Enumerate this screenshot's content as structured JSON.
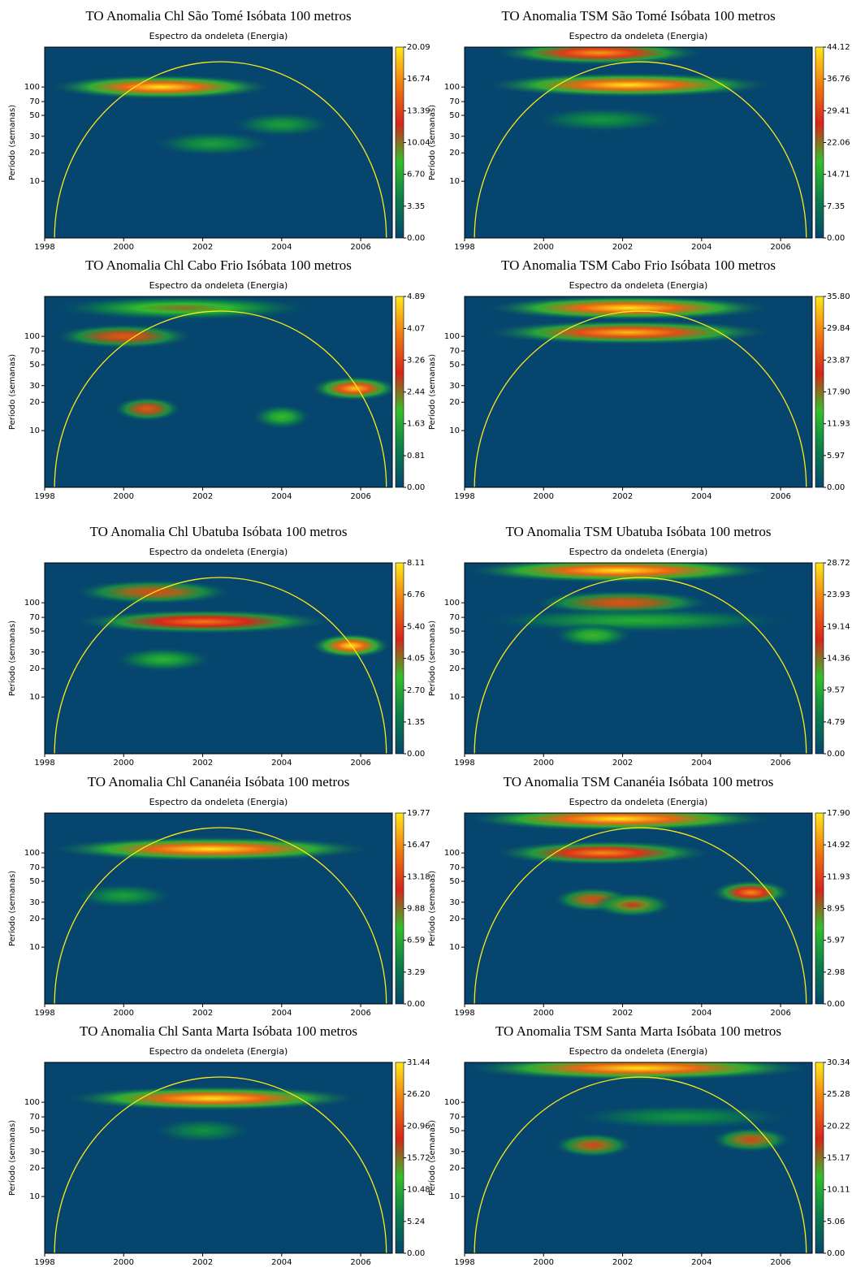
{
  "chart_data": [
    {
      "type": "heatmap",
      "title": "TO Anomalia Chl São Tomé Isóbata 100 metros",
      "subtitle": "Espectro da ondeleta (Energia)",
      "ylabel": "Período (semanas)",
      "xlim": [
        1998,
        2006.8
      ],
      "xticks": [
        1998,
        2000,
        2002,
        2004,
        2006
      ],
      "ylim": [
        2.5,
        265
      ],
      "yticks": [
        100,
        70,
        50,
        30,
        20,
        10
      ],
      "log_y": true,
      "clim": [
        0,
        20.09
      ],
      "cticks": [
        {
          "value": 0,
          "label": "0.00"
        },
        3.35,
        {
          "value": 6.7,
          "label": "6.70"
        },
        10.04,
        13.39,
        16.74,
        20.09
      ],
      "colormap": [
        "#06466e",
        "#0b7f4a",
        "#33c02a",
        "#d8261a",
        "#f07a10",
        "#ffe818"
      ],
      "peaks": [
        {
          "x": [
            1998.4,
            2003.5
          ],
          "period": 100,
          "energy": 20.09
        },
        {
          "x": [
            2001,
            2003.5
          ],
          "period": 25,
          "energy": 6
        },
        {
          "x": [
            2003,
            2005
          ],
          "period": 40,
          "energy": 6
        }
      ]
    },
    {
      "type": "heatmap",
      "title": "TO Anomalia TSM São Tomé Isóbata 100 metros",
      "subtitle": "Espectro da ondeleta (Energia)",
      "ylabel": "Período (semanas)",
      "xlim": [
        1998,
        2006.8
      ],
      "xticks": [
        1998,
        2000,
        2002,
        2004,
        2006
      ],
      "ylim": [
        2.5,
        265
      ],
      "yticks": [
        100,
        70,
        50,
        30,
        20,
        10
      ],
      "log_y": true,
      "clim": [
        0,
        44.12
      ],
      "cticks": [
        {
          "value": 0,
          "label": "0.00"
        },
        7.35,
        14.71,
        22.06,
        29.41,
        36.76,
        44.12
      ],
      "colormap": [
        "#06466e",
        "#0b7f4a",
        "#33c02a",
        "#d8261a",
        "#f07a10",
        "#ffe818"
      ],
      "peaks": [
        {
          "x": [
            1999,
            2003.8
          ],
          "period": 230,
          "energy": 38
        },
        {
          "x": [
            1998.8,
            2005.5
          ],
          "period": 105,
          "energy": 44.12
        },
        {
          "x": [
            2000,
            2003
          ],
          "period": 45,
          "energy": 12
        }
      ]
    },
    {
      "type": "heatmap",
      "title": "TO Anomalia Chl Cabo Frio Isóbata 100 metros",
      "subtitle": "Espectro da ondeleta (Energia)",
      "ylabel": "Período (semanas)",
      "xlim": [
        1998,
        2006.8
      ],
      "xticks": [
        1998,
        2000,
        2002,
        2004,
        2006
      ],
      "ylim": [
        2.5,
        265
      ],
      "yticks": [
        100,
        70,
        50,
        30,
        20,
        10
      ],
      "log_y": true,
      "clim": [
        0,
        4.89
      ],
      "cticks": [
        {
          "value": 0,
          "label": "0.00"
        },
        0.81,
        1.63,
        2.44,
        3.26,
        4.07,
        4.89
      ],
      "colormap": [
        "#06466e",
        "#0b7f4a",
        "#33c02a",
        "#d8261a",
        "#f07a10",
        "#ffe818"
      ],
      "peaks": [
        {
          "x": [
            1998.5,
            2004.5
          ],
          "period": 200,
          "energy": 2.5
        },
        {
          "x": [
            1998.5,
            2001.5
          ],
          "period": 100,
          "energy": 3.5
        },
        {
          "x": [
            2005,
            2006.7
          ],
          "period": 28,
          "energy": 4.6
        },
        {
          "x": [
            2000,
            2001.2
          ],
          "period": 17,
          "energy": 3.5
        },
        {
          "x": [
            2003.5,
            2004.5
          ],
          "period": 14,
          "energy": 2
        }
      ]
    },
    {
      "type": "heatmap",
      "title": "TO Anomalia TSM Cabo Frio Isóbata 100 metros",
      "subtitle": "Espectro da ondeleta (Energia)",
      "ylabel": "Período (semanas)",
      "xlim": [
        1998,
        2006.8
      ],
      "xticks": [
        1998,
        2000,
        2002,
        2004,
        2006
      ],
      "ylim": [
        2.5,
        265
      ],
      "yticks": [
        100,
        70,
        50,
        30,
        20,
        10
      ],
      "log_y": true,
      "clim": [
        0,
        35.8
      ],
      "cticks": [
        {
          "value": 0,
          "label": "0.00"
        },
        5.97,
        11.93,
        {
          "value": 17.9,
          "label": "17.90"
        },
        23.87,
        29.84,
        {
          "value": 35.8,
          "label": "35.80"
        }
      ],
      "colormap": [
        "#06466e",
        "#0b7f4a",
        "#33c02a",
        "#d8261a",
        "#f07a10",
        "#ffe818"
      ],
      "peaks": [
        {
          "x": [
            1998.8,
            2005.5
          ],
          "period": 200,
          "energy": 35.8
        },
        {
          "x": [
            1998.8,
            2005.5
          ],
          "period": 110,
          "energy": 33
        }
      ]
    },
    {
      "type": "heatmap",
      "title": "TO Anomalia Chl Ubatuba Isóbata 100 metros",
      "subtitle": "Espectro da ondeleta (Energia)",
      "ylabel": "Período (semanas)",
      "xlim": [
        1998,
        2006.8
      ],
      "xticks": [
        1998,
        2000,
        2002,
        2004,
        2006
      ],
      "ylim": [
        2.5,
        265
      ],
      "yticks": [
        100,
        70,
        50,
        30,
        20,
        10
      ],
      "log_y": true,
      "clim": [
        0,
        8.11
      ],
      "cticks": [
        {
          "value": 0,
          "label": "0.00"
        },
        1.35,
        {
          "value": 2.7,
          "label": "2.70"
        },
        4.05,
        {
          "value": 5.4,
          "label": "5.40"
        },
        6.76,
        8.11
      ],
      "colormap": [
        "#06466e",
        "#0b7f4a",
        "#33c02a",
        "#d8261a",
        "#f07a10",
        "#ffe818"
      ],
      "peaks": [
        {
          "x": [
            1999,
            2002.5
          ],
          "period": 130,
          "energy": 5.5
        },
        {
          "x": [
            1999,
            2005
          ],
          "period": 63,
          "energy": 6.5
        },
        {
          "x": [
            2005,
            2006.5
          ],
          "period": 35,
          "energy": 8.11
        },
        {
          "x": [
            2000,
            2002
          ],
          "period": 25,
          "energy": 3
        }
      ]
    },
    {
      "type": "heatmap",
      "title": "TO Anomalia TSM Ubatuba Isóbata 100 metros",
      "subtitle": "Espectro da ondeleta (Energia)",
      "ylabel": "Período (semanas)",
      "xlim": [
        1998,
        2006.8
      ],
      "xticks": [
        1998,
        2000,
        2002,
        2004,
        2006
      ],
      "ylim": [
        2.5,
        265
      ],
      "yticks": [
        100,
        70,
        50,
        30,
        20,
        10
      ],
      "log_y": true,
      "clim": [
        0,
        28.72
      ],
      "cticks": [
        {
          "value": 0,
          "label": "0.00"
        },
        4.79,
        9.57,
        14.36,
        19.14,
        23.93,
        28.72
      ],
      "colormap": [
        "#06466e",
        "#0b7f4a",
        "#33c02a",
        "#d8261a",
        "#f07a10",
        "#ffe818"
      ],
      "peaks": [
        {
          "x": [
            1998.3,
            2005.5
          ],
          "period": 220,
          "energy": 28.72
        },
        {
          "x": [
            2000,
            2004
          ],
          "period": 100,
          "energy": 20
        },
        {
          "x": [
            1998.7,
            2006
          ],
          "period": 65,
          "energy": 10
        },
        {
          "x": [
            2000.5,
            2002
          ],
          "period": 45,
          "energy": 12
        }
      ]
    },
    {
      "type": "heatmap",
      "title": "TO Anomalia Chl Cananéia Isóbata 100 metros",
      "subtitle": "Espectro da ondeleta (Energia)",
      "ylabel": "Período (semanas)",
      "xlim": [
        1998,
        2006.8
      ],
      "xticks": [
        1998,
        2000,
        2002,
        2004,
        2006
      ],
      "ylim": [
        2.5,
        265
      ],
      "yticks": [
        100,
        70,
        50,
        30,
        20,
        10
      ],
      "log_y": true,
      "clim": [
        0,
        19.77
      ],
      "cticks": [
        {
          "value": 0,
          "label": "0.00"
        },
        3.29,
        6.59,
        9.88,
        13.18,
        16.47,
        19.77
      ],
      "colormap": [
        "#06466e",
        "#0b7f4a",
        "#33c02a",
        "#d8261a",
        "#f07a10",
        "#ffe818"
      ],
      "peaks": [
        {
          "x": [
            1998.4,
            2006
          ],
          "period": 110,
          "energy": 19.77
        },
        {
          "x": [
            1999,
            2001
          ],
          "period": 35,
          "energy": 6
        }
      ]
    },
    {
      "type": "heatmap",
      "title": "TO Anomalia TSM Cananéia Isóbata 100 metros",
      "subtitle": "Espectro da ondeleta (Energia)",
      "ylabel": "Período (semanas)",
      "xlim": [
        1998,
        2006.8
      ],
      "xticks": [
        1998,
        2000,
        2002,
        2004,
        2006
      ],
      "ylim": [
        2.5,
        265
      ],
      "yticks": [
        100,
        70,
        50,
        30,
        20,
        10
      ],
      "log_y": true,
      "clim": [
        0,
        17.9
      ],
      "cticks": [
        {
          "value": 0,
          "label": "0.00"
        },
        2.98,
        5.97,
        8.95,
        11.93,
        14.92,
        {
          "value": 17.9,
          "label": "17.90"
        }
      ],
      "colormap": [
        "#06466e",
        "#0b7f4a",
        "#33c02a",
        "#d8261a",
        "#f07a10",
        "#ffe818"
      ],
      "peaks": [
        {
          "x": [
            1998.3,
            2005.5
          ],
          "period": 230,
          "energy": 17.9
        },
        {
          "x": [
            1999,
            2004
          ],
          "period": 100,
          "energy": 15
        },
        {
          "x": [
            2004.5,
            2006
          ],
          "period": 38,
          "energy": 15
        },
        {
          "x": [
            2000.5,
            2002
          ],
          "period": 32,
          "energy": 12
        },
        {
          "x": [
            2001.5,
            2003
          ],
          "period": 28,
          "energy": 11
        }
      ]
    },
    {
      "type": "heatmap",
      "title": "TO Anomalia Chl Santa Marta Isóbata 100 metros",
      "subtitle": "Espectro da ondeleta (Energia)",
      "ylabel": "Período (semanas)",
      "xlim": [
        1998,
        2006.8
      ],
      "xticks": [
        1998,
        2000,
        2002,
        2004,
        2006
      ],
      "ylim": [
        2.5,
        265
      ],
      "yticks": [
        100,
        70,
        50,
        30,
        20,
        10
      ],
      "log_y": true,
      "clim": [
        0,
        31.44
      ],
      "cticks": [
        {
          "value": 0,
          "label": "0.00"
        },
        5.24,
        10.48,
        15.72,
        20.96,
        {
          "value": 26.2,
          "label": "26.20"
        },
        31.44
      ],
      "colormap": [
        "#06466e",
        "#0b7f4a",
        "#33c02a",
        "#d8261a",
        "#f07a10",
        "#ffe818"
      ],
      "peaks": [
        {
          "x": [
            1998.8,
            2005.7
          ],
          "period": 110,
          "energy": 31.44
        },
        {
          "x": [
            2001,
            2003
          ],
          "period": 50,
          "energy": 8
        }
      ]
    },
    {
      "type": "heatmap",
      "title": "TO Anomalia TSM Santa Marta Isóbata 100 metros",
      "subtitle": "Espectro da ondeleta (Energia)",
      "ylabel": "Período (semanas)",
      "xlim": [
        1998,
        2006.8
      ],
      "xticks": [
        1998,
        2000,
        2002,
        2004,
        2006
      ],
      "ylim": [
        2.5,
        265
      ],
      "yticks": [
        100,
        70,
        50,
        30,
        20,
        10
      ],
      "log_y": true,
      "clim": [
        0,
        30.34
      ],
      "cticks": [
        {
          "value": 0,
          "label": "0.00"
        },
        5.06,
        10.11,
        15.17,
        20.22,
        25.28,
        30.34
      ],
      "colormap": [
        "#06466e",
        "#0b7f4a",
        "#33c02a",
        "#d8261a",
        "#f07a10",
        "#ffe818"
      ],
      "peaks": [
        {
          "x": [
            1998.3,
            2006.5
          ],
          "period": 230,
          "energy": 30.34
        },
        {
          "x": [
            2001,
            2006
          ],
          "period": 70,
          "energy": 8
        },
        {
          "x": [
            2000.5,
            2002
          ],
          "period": 35,
          "energy": 20
        },
        {
          "x": [
            2004.5,
            2006
          ],
          "period": 40,
          "energy": 20
        }
      ]
    }
  ]
}
